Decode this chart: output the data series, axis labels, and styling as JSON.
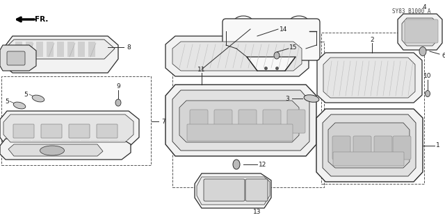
{
  "background_color": "#ffffff",
  "diagram_code": "SY83 B1000 A",
  "fr_label": "FR.",
  "line_color": "#2a2a2a",
  "text_color": "#1a1a1a",
  "label_fontsize": 6.5,
  "fill_light": "#f2f2f2",
  "fill_mid": "#e0e0e0",
  "fill_dark": "#c8c8c8",
  "hatch_color": "#888888"
}
